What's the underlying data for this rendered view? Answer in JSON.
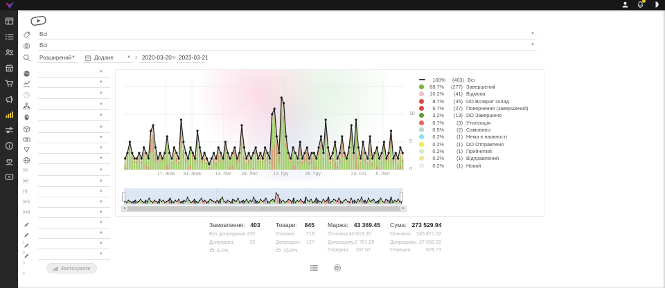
{
  "topbar": {
    "icons": [
      {
        "name": "user",
        "badge": false
      },
      {
        "name": "bell",
        "badge": true
      },
      {
        "name": "theme-moon",
        "badge": false
      }
    ],
    "badge_color": "#f2c41d"
  },
  "sidebar": {
    "active_color": "#e3c33e",
    "items": [
      {
        "icon": "dashboard",
        "active": false
      },
      {
        "icon": "orders",
        "active": false
      },
      {
        "icon": "users",
        "active": false
      },
      {
        "icon": "store",
        "active": false
      },
      {
        "icon": "cart",
        "active": false
      },
      {
        "icon": "megaphone",
        "active": false
      },
      {
        "icon": "stats",
        "active": true
      },
      {
        "icon": "sliders",
        "active": false
      },
      {
        "icon": "info",
        "active": false
      },
      {
        "icon": "partnership",
        "active": false
      },
      {
        "icon": "video",
        "active": false
      }
    ]
  },
  "filters": {
    "status": {
      "value": "Всі"
    },
    "product": {
      "value": "Всі"
    },
    "mode": {
      "value": "Розширений"
    },
    "date_field": {
      "value": "Додане"
    },
    "from_label": "з",
    "from": "2020-03-20",
    "to_label": "по",
    "to": "2023-03-21"
  },
  "params": {
    "apply_label": "Застосувати",
    "rows": [
      {
        "icon": "globe-solid"
      },
      {
        "icon": "trend"
      },
      {
        "icon": "help",
        "dim": true
      },
      {
        "icon": "hierarchy"
      },
      {
        "icon": "fingerprint"
      },
      {
        "icon": "cube"
      },
      {
        "icon": "banknote"
      },
      {
        "icon": "funnel"
      },
      {
        "icon": "globe"
      },
      {
        "token": "{s}"
      },
      {
        "token": "{м}"
      },
      {
        "token": "{т}"
      },
      {
        "token": "{сч}"
      },
      {
        "token": "{св}"
      },
      {
        "icon": "pencil",
        "num": "1"
      },
      {
        "icon": "pencil",
        "num": "2"
      },
      {
        "icon": "pencil",
        "num": "3"
      },
      {
        "icon": "pencil",
        "num": "4"
      }
    ]
  },
  "chart_data": {
    "type": "line+stacked-bar",
    "date_range": {
      "from": "2020-03-20",
      "to": "2023-03-21"
    },
    "ylim": [
      0,
      16
    ],
    "y_ticks": [
      0,
      5,
      10
    ],
    "grid": true,
    "legend_position": "right",
    "line_color": "#1f1f1f",
    "area_fill": "rgba(150,200,95,0.32)",
    "area_stroke": "#7cb342",
    "bar_palette": {
      "green": "#a9d170",
      "red": "#e9897f",
      "pink": "#f3c7ce",
      "cyan": "#8fd9e8",
      "yellow": "#f0e763"
    },
    "x_labels": [
      {
        "label": "17. Жов",
        "f": 0.15
      },
      {
        "label": "31. Жов",
        "f": 0.243
      },
      {
        "label": "14. Лис",
        "f": 0.355
      },
      {
        "label": "28. Лис",
        "f": 0.448
      },
      {
        "label": "12. Гру",
        "f": 0.56
      },
      {
        "label": "26. Гру",
        "f": 0.675
      },
      {
        "label": "23. Січ",
        "f": 0.838
      },
      {
        "label": "6. Лют",
        "f": 0.925
      }
    ],
    "totals": [
      2,
      3,
      5,
      3,
      2,
      2,
      3,
      2,
      4,
      3,
      2,
      7,
      8,
      4,
      2,
      3,
      2,
      3,
      6,
      3,
      2,
      4,
      3,
      2,
      9,
      5,
      3,
      2,
      4,
      3,
      2,
      7,
      4,
      2,
      3,
      2,
      1,
      2,
      3,
      2,
      4,
      3,
      2,
      5,
      3,
      2,
      3,
      4,
      2,
      3,
      8,
      4,
      2,
      3,
      2,
      3,
      4,
      2,
      3,
      2,
      4,
      3,
      2,
      10,
      11,
      6,
      3,
      13,
      12,
      6,
      3,
      2,
      4,
      3,
      2,
      5,
      2,
      3,
      4,
      2,
      3,
      3,
      2,
      4,
      6,
      3,
      9,
      4,
      2,
      3,
      5,
      2,
      3,
      6,
      3,
      2,
      4,
      8,
      3,
      9,
      4,
      2,
      5,
      3,
      2,
      6,
      2,
      3,
      4,
      2,
      3,
      5,
      2,
      3,
      7,
      2,
      3,
      2,
      4,
      3
    ],
    "nav_totals": [
      2,
      1,
      3,
      2,
      1,
      2,
      3,
      1,
      2,
      4,
      2,
      1,
      3,
      2,
      5,
      2,
      1,
      3,
      2,
      1,
      4,
      2,
      3,
      1,
      2,
      3,
      5,
      2,
      1,
      3,
      2,
      4,
      1,
      2,
      3,
      2,
      6,
      3,
      1,
      2,
      4,
      2,
      1,
      3,
      5,
      2,
      3,
      1,
      2,
      4,
      3,
      2,
      1,
      3,
      2,
      4,
      6,
      2,
      1,
      3,
      2,
      1,
      4,
      3,
      2,
      5,
      1,
      2,
      3,
      2,
      4,
      1,
      3,
      2,
      6,
      3,
      2,
      1,
      4,
      2,
      3,
      5,
      2,
      1,
      3,
      4,
      2,
      10,
      8,
      4,
      2,
      3,
      1,
      2,
      4,
      3,
      2,
      5,
      1,
      3,
      2,
      4,
      2,
      1,
      6,
      3,
      2,
      4,
      1,
      2,
      5,
      3,
      2,
      1,
      4,
      2,
      3,
      6,
      1,
      2,
      4,
      3,
      2,
      5,
      2,
      1,
      3,
      4,
      2,
      1,
      5,
      2,
      3,
      1,
      4,
      2,
      6,
      2,
      3,
      1,
      5,
      2,
      3,
      4,
      1,
      2,
      3,
      5,
      2,
      1,
      4,
      3,
      2,
      6,
      1,
      3,
      2,
      4,
      2,
      3
    ],
    "legend": [
      {
        "swatch": "line",
        "color": "#3a3a3a",
        "pct": "100%",
        "count": "(403)",
        "label": "Всі"
      },
      {
        "swatch": "circle",
        "color": "#7cb342",
        "pct": "68.7%",
        "count": "(277)",
        "label": "Завершений"
      },
      {
        "swatch": "circle",
        "color": "#f4c2cc",
        "pct": "10.2%",
        "count": "(41)",
        "label": "Відмова"
      },
      {
        "swatch": "circle",
        "color": "#e0493f",
        "pct": "8.7%",
        "count": "(35)",
        "label": "DO Возврат склад"
      },
      {
        "swatch": "circle",
        "color": "#e0493f",
        "pct": "6.7%",
        "count": "(27)",
        "label": "Повернення (завершений)"
      },
      {
        "swatch": "circle",
        "color": "#5d9e33",
        "pct": "3.2%",
        "count": "(13)",
        "label": "DO Завершено"
      },
      {
        "swatch": "circle",
        "color": "#e8695c",
        "pct": "0.7%",
        "count": "(3)",
        "label": "Утилізація"
      },
      {
        "swatch": "circle",
        "color": "#bdd9d4",
        "pct": "0.5%",
        "count": "(2)",
        "label": "Самовивіз"
      },
      {
        "swatch": "circle",
        "color": "#82e6f2",
        "pct": "0.2%",
        "count": "(1)",
        "label": "Нема в наявності"
      },
      {
        "swatch": "circle",
        "color": "#f5ec53",
        "pct": "0.2%",
        "count": "(1)",
        "label": "DO Отправлено"
      },
      {
        "swatch": "circle",
        "color": "#dcedc8",
        "pct": "0.2%",
        "count": "(1)",
        "label": "Прийнятий"
      },
      {
        "swatch": "circle",
        "color": "#f2e795",
        "pct": "0.2%",
        "count": "(1)",
        "label": "Відправлений"
      },
      {
        "swatch": "circle",
        "color": "#efefef",
        "pct": "0.2%",
        "count": "(1)",
        "label": "Новий"
      }
    ]
  },
  "stats": {
    "columns": [
      {
        "title": "Замовлення:",
        "value": "403",
        "rows": [
          {
            "label": "Без допродажів:",
            "value": "370"
          },
          {
            "label": "Допродані:",
            "value": "33"
          }
        ],
        "foot": {
          "icon": "basket",
          "value": "8.2%"
        }
      },
      {
        "title": "Товари:",
        "value": "845",
        "rows": [
          {
            "label": "Основні:",
            "value": "718"
          },
          {
            "label": "Допродані:",
            "value": "127"
          }
        ],
        "foot": {
          "icon": "basket",
          "value": "15.0%"
        }
      },
      {
        "title": "Маржа:",
        "value": "43 369.45",
        "rows": [
          {
            "label": "Основна:",
            "value": "40 618.20"
          },
          {
            "label": "Допродажу:",
            "value": "2 751.25"
          },
          {
            "label": "Середня:",
            "value": "107.62"
          }
        ]
      },
      {
        "title": "Сума:",
        "value": "273 529.94",
        "rows": [
          {
            "label": "Основна:",
            "value": "245 871.02"
          },
          {
            "label": "Допродажу:",
            "value": "27 658.92"
          },
          {
            "label": "Середня:",
            "value": "678.73"
          }
        ]
      }
    ]
  },
  "footer_icons": [
    {
      "name": "list-view"
    },
    {
      "name": "product-view"
    }
  ]
}
